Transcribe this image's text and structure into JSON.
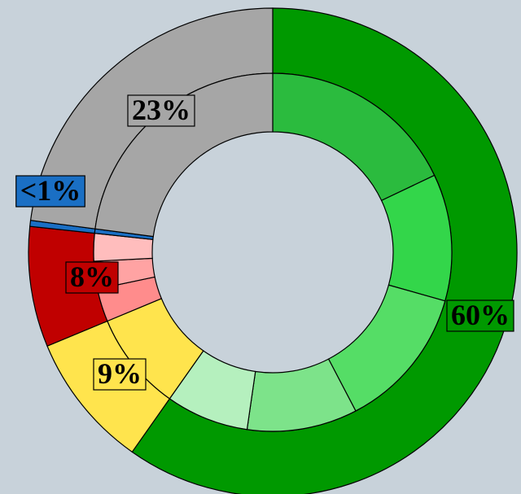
{
  "chart_data": {
    "type": "nested-donut",
    "rings": [
      {
        "values": [
          60,
          9,
          8,
          0.4,
          23
        ],
        "value_labels": [
          "60%",
          "9%",
          "8%",
          "<1%",
          "23%"
        ],
        "colors": [
          "#009900",
          "#ffe44d",
          "#c00000",
          "#1a6fc4",
          "#a6a6a6"
        ]
      },
      {
        "values": [
          18,
          11.5,
          13,
          10,
          7.5,
          9,
          3,
          2.5,
          2.5,
          0.4,
          23
        ],
        "colors": [
          "#2bbb3e",
          "#33d64a",
          "#55dd66",
          "#7de38a",
          "#b5f0be",
          "#ffe44d",
          "#ff8c8c",
          "#ffa3a3",
          "#ffbdbd",
          "#1a6fc4",
          "#a6a6a6"
        ]
      }
    ]
  }
}
